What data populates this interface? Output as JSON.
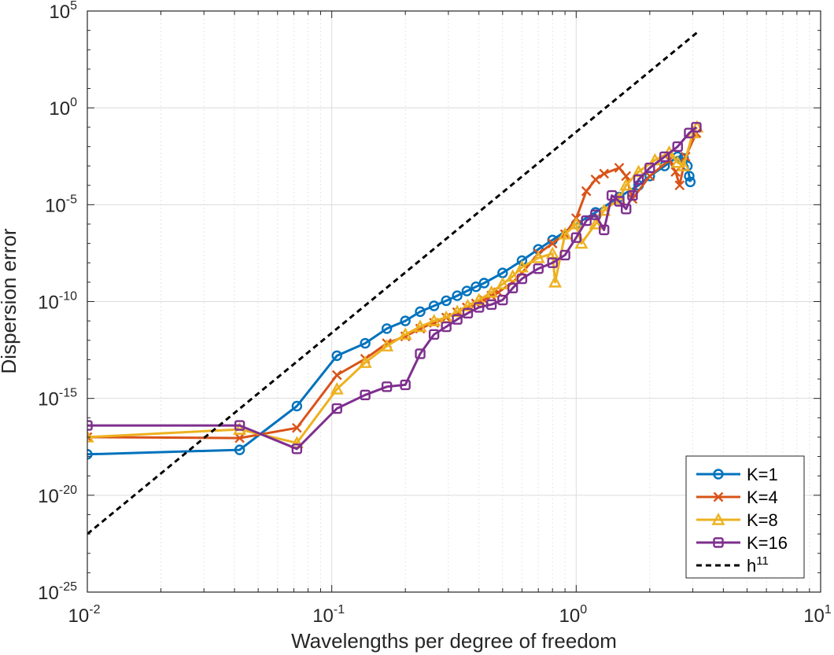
{
  "chart_data": {
    "type": "line",
    "xscale": "log",
    "yscale": "log",
    "xlabel": "Wavelengths per degree of freedom",
    "ylabel": "Dispersion error",
    "xlim": [
      0.01,
      10
    ],
    "ylim": [
      1e-25,
      100000.0
    ],
    "grid": true,
    "legend_position": "bottom-right",
    "x_ticks": [
      {
        "value": 0.01,
        "base": "10",
        "exp": "-2"
      },
      {
        "value": 0.1,
        "base": "10",
        "exp": "-1"
      },
      {
        "value": 1,
        "base": "10",
        "exp": "0"
      },
      {
        "value": 10,
        "base": "10",
        "exp": "1"
      }
    ],
    "y_ticks": [
      {
        "value": 1e-25,
        "base": "10",
        "exp": "-25"
      },
      {
        "value": 1e-20,
        "base": "10",
        "exp": "-20"
      },
      {
        "value": 1e-15,
        "base": "10",
        "exp": "-15"
      },
      {
        "value": 1e-10,
        "base": "10",
        "exp": "-10"
      },
      {
        "value": 1e-05,
        "base": "10",
        "exp": "-5"
      },
      {
        "value": 1,
        "base": "10",
        "exp": "0"
      },
      {
        "value": 100000.0,
        "base": "10",
        "exp": "5"
      }
    ],
    "series": [
      {
        "name": "K=1",
        "color": "#0072BD",
        "marker": "circle",
        "style": "solid",
        "points": [
          [
            0.01,
            1.3e-18
          ],
          [
            0.042,
            2.2e-18
          ],
          [
            0.072,
            4e-16
          ],
          [
            0.105,
            1.6e-13
          ],
          [
            0.137,
            7e-13
          ],
          [
            0.168,
            4e-12
          ],
          [
            0.2,
            1e-11
          ],
          [
            0.23,
            3e-11
          ],
          [
            0.262,
            6e-11
          ],
          [
            0.294,
            1.1e-10
          ],
          [
            0.326,
            2e-10
          ],
          [
            0.357,
            3.5e-10
          ],
          [
            0.389,
            5.8e-10
          ],
          [
            0.42,
            9e-10
          ],
          [
            0.5,
            3e-09
          ],
          [
            0.6,
            1.3e-08
          ],
          [
            0.7,
            5e-08
          ],
          [
            0.8,
            1.5e-07
          ],
          [
            1.0,
            1e-06
          ],
          [
            1.2,
            4e-06
          ],
          [
            1.5,
            2.5e-05
          ],
          [
            1.8,
            0.0001
          ],
          [
            2.0,
            0.0003
          ],
          [
            2.3,
            0.001
          ],
          [
            2.6,
            0.003
          ],
          [
            2.75,
            0.0025
          ],
          [
            2.85,
            0.001
          ],
          [
            2.9,
            0.0003
          ],
          [
            2.93,
            0.00015
          ]
        ]
      },
      {
        "name": "K=4",
        "color": "#D95319",
        "marker": "x",
        "style": "solid",
        "points": [
          [
            0.01,
            1e-17
          ],
          [
            0.042,
            9e-18
          ],
          [
            0.072,
            3e-17
          ],
          [
            0.105,
            1.6e-14
          ],
          [
            0.137,
            1.1e-13
          ],
          [
            0.168,
            7e-13
          ],
          [
            0.2,
            1.6e-12
          ],
          [
            0.23,
            4e-12
          ],
          [
            0.262,
            8e-12
          ],
          [
            0.294,
            1.5e-11
          ],
          [
            0.326,
            2.8e-11
          ],
          [
            0.357,
            5e-11
          ],
          [
            0.389,
            8e-11
          ],
          [
            0.42,
            1.2e-10
          ],
          [
            0.45,
            2e-10
          ],
          [
            0.48,
            3e-10
          ],
          [
            0.55,
            1e-09
          ],
          [
            0.6,
            3e-09
          ],
          [
            0.7,
            3e-08
          ],
          [
            0.8,
            1e-07
          ],
          [
            0.9,
            3e-07
          ],
          [
            1.0,
            2e-06
          ],
          [
            1.1,
            5e-05
          ],
          [
            1.2,
            0.0002
          ],
          [
            1.3,
            0.0004
          ],
          [
            1.5,
            0.0008
          ],
          [
            1.6,
            0.0003
          ],
          [
            1.7,
            2e-05
          ],
          [
            2.0,
            0.0003
          ],
          [
            2.4,
            0.002
          ],
          [
            2.55,
            0.0005
          ],
          [
            2.65,
            0.0001
          ],
          [
            2.8,
            0.003
          ],
          [
            3.1,
            0.05
          ]
        ]
      },
      {
        "name": "K=8",
        "color": "#EDB120",
        "marker": "triangle",
        "style": "solid",
        "points": [
          [
            0.01,
            1e-17
          ],
          [
            0.042,
            2.5e-17
          ],
          [
            0.072,
            5e-18
          ],
          [
            0.105,
            3e-15
          ],
          [
            0.137,
            7e-14
          ],
          [
            0.168,
            5e-13
          ],
          [
            0.2,
            2e-12
          ],
          [
            0.23,
            5e-12
          ],
          [
            0.262,
            1e-11
          ],
          [
            0.294,
            1.5e-11
          ],
          [
            0.326,
            3e-11
          ],
          [
            0.36,
            6e-11
          ],
          [
            0.4,
            1.2e-10
          ],
          [
            0.45,
            3e-10
          ],
          [
            0.5,
            8e-10
          ],
          [
            0.55,
            2e-09
          ],
          [
            0.6,
            6e-09
          ],
          [
            0.7,
            1.8e-08
          ],
          [
            0.8,
            3e-08
          ],
          [
            0.82,
            1e-09
          ],
          [
            0.9,
            3e-07
          ],
          [
            1.0,
            1e-06
          ],
          [
            1.05,
            1e-07
          ],
          [
            1.2,
            1e-06
          ],
          [
            1.3,
            5e-06
          ],
          [
            1.5,
            2e-05
          ],
          [
            1.6,
            0.0001
          ],
          [
            1.8,
            0.0005
          ],
          [
            2.1,
            0.002
          ],
          [
            2.4,
            0.005
          ],
          [
            2.6,
            0.0015
          ],
          [
            2.75,
            0.001
          ],
          [
            3.0,
            0.05
          ],
          [
            3.12,
            0.1
          ]
        ]
      },
      {
        "name": "K=16",
        "color": "#7E2F8E",
        "marker": "square",
        "style": "solid",
        "points": [
          [
            0.01,
            4e-17
          ],
          [
            0.042,
            4e-17
          ],
          [
            0.072,
            2.5e-18
          ],
          [
            0.105,
            3e-16
          ],
          [
            0.137,
            1.5e-15
          ],
          [
            0.168,
            4e-15
          ],
          [
            0.2,
            5e-15
          ],
          [
            0.23,
            2e-13
          ],
          [
            0.262,
            2e-12
          ],
          [
            0.294,
            5e-12
          ],
          [
            0.326,
            1.2e-11
          ],
          [
            0.36,
            2.5e-11
          ],
          [
            0.4,
            5e-11
          ],
          [
            0.45,
            7e-11
          ],
          [
            0.5,
            1.2e-10
          ],
          [
            0.55,
            5e-10
          ],
          [
            0.6,
            1.5e-09
          ],
          [
            0.7,
            5e-09
          ],
          [
            0.8,
            1e-08
          ],
          [
            0.9,
            2.5e-08
          ],
          [
            1.0,
            2e-07
          ],
          [
            1.1,
            1.5e-06
          ],
          [
            1.2,
            3e-06
          ],
          [
            1.3,
            5e-07
          ],
          [
            1.4,
            3e-05
          ],
          [
            1.5,
            1.5e-05
          ],
          [
            1.6,
            6e-06
          ],
          [
            1.7,
            3e-05
          ],
          [
            1.8,
            0.0002
          ],
          [
            2.0,
            0.0008
          ],
          [
            2.3,
            0.003
          ],
          [
            2.6,
            0.01
          ],
          [
            2.9,
            0.05
          ],
          [
            3.1,
            0.1
          ]
        ]
      },
      {
        "name": "h^11",
        "legend_base": "h",
        "legend_exp": "11",
        "color": "#000000",
        "marker": "none",
        "style": "dashed",
        "points": [
          [
            0.01,
            1e-22
          ],
          [
            3.2,
            10000
          ]
        ]
      }
    ]
  }
}
